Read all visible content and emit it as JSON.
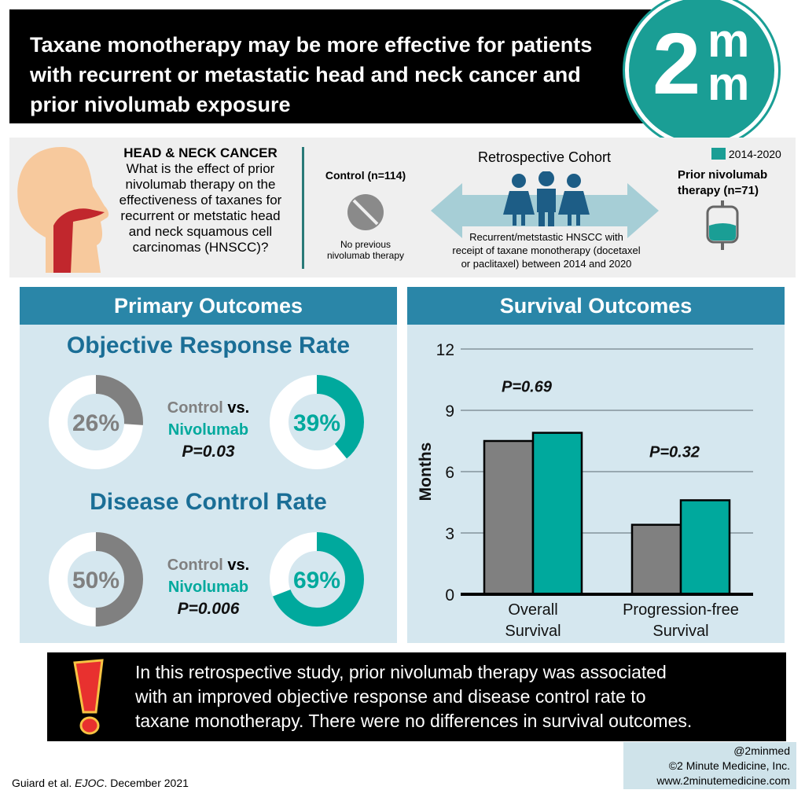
{
  "header": {
    "title_lines": [
      "Taxane monotherapy may be more effective for patients",
      "with recurrent or metastatic head and neck cancer and",
      "prior nivolumab exposure"
    ],
    "logo": "2mm"
  },
  "question": {
    "heading": "HEAD & NECK CANCER",
    "text_lines": [
      "What is the effect of prior",
      "nivolumab therapy on the",
      "effectiveness of taxanes for",
      "recurrent or metstatic head",
      "and neck squamous cell",
      "carcinomas (HNSCC)?"
    ]
  },
  "cohort": {
    "title": "Retrospective Cohort",
    "control_label": "Control",
    "control_n": "(n=114)",
    "control_desc_lines": [
      "No previous",
      "nivolumab therapy"
    ],
    "desc_lines": [
      "Recurrent/metstastic HNSCC with",
      "receipt of taxane monotherapy (docetaxel",
      "or paclitaxel) between 2014 and 2020"
    ],
    "years": "2014-2020",
    "nivo_label_lines": [
      "Prior nivolumab",
      "therapy"
    ],
    "nivo_n": "(n=71)"
  },
  "primary": {
    "title": "Primary Outcomes",
    "orr": {
      "title": "Objective Response Rate",
      "control": "26%",
      "control_value": 26,
      "nivo": "39%",
      "nivo_value": 39,
      "p": "P=0.03"
    },
    "dcr": {
      "title": "Disease Control Rate",
      "control": "50%",
      "control_value": 50,
      "nivo": "69%",
      "nivo_value": 69,
      "p": "P=0.006"
    },
    "control_word": "Control",
    "vs": " vs.",
    "nivo_word": "Nivolumab"
  },
  "survival": {
    "title": "Survival Outcomes"
  },
  "chart_data": {
    "type": "bar",
    "categories": [
      "Overall Survival",
      "Progression-free Survival"
    ],
    "category_lines": [
      [
        "Overall",
        "Survival"
      ],
      [
        "Progression-free",
        "Survival"
      ]
    ],
    "series": [
      {
        "values": [
          7.5,
          3.4
        ],
        "color": "#808080"
      },
      {
        "values": [
          7.9,
          4.6
        ],
        "color": "#00a99d"
      }
    ],
    "ylabel": "Months",
    "ylim": [
      0,
      12
    ],
    "yticks": [
      0,
      3,
      6,
      9,
      12
    ],
    "grid": true,
    "annotations": [
      "P=0.69",
      "P=0.32"
    ]
  },
  "conclusion": {
    "lines": [
      "In this retrospective study, prior nivolumab therapy was associated",
      "with an improved objective response and disease control rate to",
      "taxane monotherapy. There were no differences in survival outcomes."
    ]
  },
  "footer": {
    "citation_pre": "Guiard et al. ",
    "journal": "EJOC",
    "citation_post": ". December 2021",
    "handle": "@2minmed",
    "copyright": "©2 Minute Medicine, Inc.",
    "url": "www.2minutemedicine.com"
  },
  "colors": {
    "control": "#808080",
    "nivolumab": "#00a99d",
    "panel_header": "#2a86a8",
    "title_blue": "#1a6e96"
  }
}
